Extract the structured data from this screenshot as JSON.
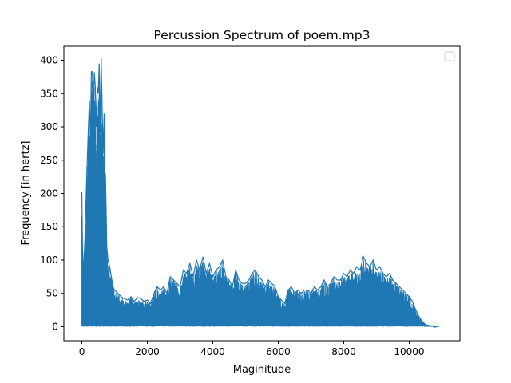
{
  "chart_data": {
    "type": "line",
    "title": "Percussion Spectrum of poem.mp3",
    "xlabel": "Maginitude",
    "ylabel": "Frequency [in hertz]",
    "xlim": [
      -550,
      11550
    ],
    "ylim": [
      -21,
      421
    ],
    "xticks": [
      0,
      2000,
      4000,
      6000,
      8000,
      10000
    ],
    "yticks": [
      0,
      50,
      100,
      150,
      200,
      250,
      300,
      350,
      400
    ],
    "grid": false,
    "legend": {
      "placement": "upper right",
      "entries": []
    },
    "series": [
      {
        "color": "#1f77b4",
        "envelope_x": [
          0,
          20,
          50,
          100,
          150,
          200,
          230,
          260,
          290,
          320,
          350,
          380,
          410,
          440,
          470,
          500,
          530,
          560,
          590,
          620,
          650,
          680,
          700,
          720,
          740,
          760,
          780,
          800,
          850,
          900,
          950,
          1000,
          1100,
          1200,
          1300,
          1400,
          1500,
          1600,
          1700,
          1800,
          1900,
          2000,
          2100,
          2200,
          2300,
          2400,
          2500,
          2600,
          2700,
          2800,
          2900,
          3000,
          3100,
          3200,
          3300,
          3400,
          3500,
          3600,
          3700,
          3800,
          3900,
          4000,
          4100,
          4200,
          4300,
          4400,
          4500,
          4600,
          4700,
          4800,
          4900,
          5000,
          5100,
          5200,
          5300,
          5400,
          5500,
          5600,
          5700,
          5800,
          5900,
          6000,
          6100,
          6200,
          6300,
          6400,
          6500,
          6600,
          6700,
          6800,
          6900,
          7000,
          7100,
          7200,
          7300,
          7400,
          7500,
          7600,
          7700,
          7800,
          7900,
          8000,
          8100,
          8200,
          8300,
          8400,
          8500,
          8600,
          8700,
          8800,
          8900,
          9000,
          9100,
          9200,
          9300,
          9400,
          9500,
          9600,
          9700,
          9800,
          9900,
          10000,
          10100,
          10200,
          10300,
          10400,
          10500,
          10600,
          10700,
          10800,
          10900,
          11000
        ],
        "envelope_y": [
          203,
          120,
          80,
          140,
          230,
          300,
          340,
          280,
          383,
          383,
          330,
          382,
          360,
          300,
          360,
          350,
          395,
          290,
          403,
          330,
          260,
          320,
          200,
          230,
          180,
          120,
          110,
          100,
          90,
          75,
          60,
          55,
          50,
          45,
          42,
          40,
          45,
          38,
          44,
          42,
          38,
          40,
          35,
          50,
          60,
          55,
          60,
          50,
          75,
          70,
          65,
          60,
          85,
          80,
          95,
          75,
          100,
          85,
          105,
          80,
          95,
          75,
          85,
          90,
          100,
          75,
          70,
          60,
          85,
          70,
          65,
          65,
          70,
          80,
          85,
          75,
          70,
          60,
          70,
          65,
          60,
          45,
          40,
          35,
          55,
          60,
          50,
          55,
          50,
          55,
          55,
          50,
          60,
          55,
          60,
          70,
          60,
          65,
          75,
          70,
          70,
          80,
          75,
          85,
          80,
          90,
          85,
          105,
          95,
          90,
          100,
          85,
          90,
          80,
          75,
          80,
          70,
          65,
          60,
          55,
          50,
          45,
          38,
          25,
          15,
          8,
          3,
          2,
          1,
          0,
          0
        ],
        "lower_bound": 0
      }
    ]
  }
}
